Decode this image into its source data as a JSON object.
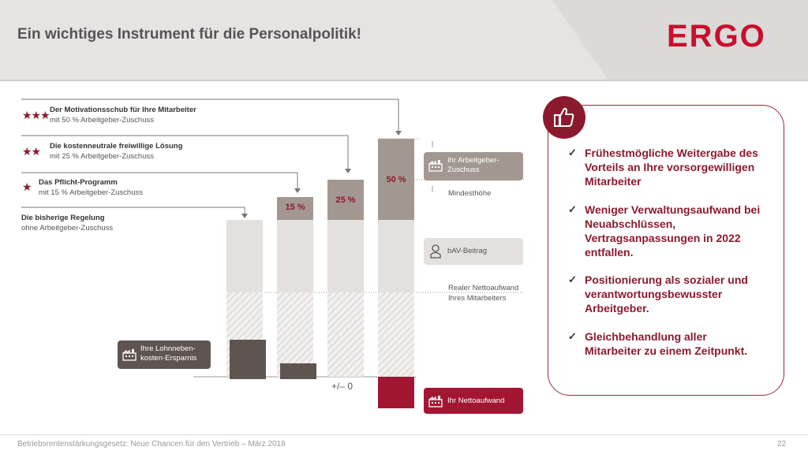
{
  "header": {
    "title": "Ein wichtiges Instrument für die Personalpolitik!",
    "logo": "ERGO"
  },
  "tiers": [
    {
      "stars": "★★★",
      "title": "Der Motivationsschub für Ihre Mitarbeiter",
      "sub": "mit 50 % Arbeitgeber-Zuschuss"
    },
    {
      "stars": "★★",
      "title": "Die kostenneutrale freiwillige Lösung",
      "sub": "mit 25 % Arbeitgeber-Zuschuss"
    },
    {
      "stars": "★",
      "title": "Das Pflicht-Programm",
      "sub": "mit 15 % Arbeitgeber-Zuschuss"
    },
    {
      "stars": "",
      "title": "Die bisherige Regelung",
      "sub": "ohne Arbeitgeber-Zuschuss"
    }
  ],
  "bars": {
    "pct": [
      "15 %",
      "25 %",
      "50 %"
    ]
  },
  "zero_label": "+/– 0",
  "tags": {
    "arbeitgeber": "Ihr Arbeitgeber-Zuschuss",
    "bav": "bAV-Beitrag",
    "lohnneben": "Ihre Lohnneben-kosten-Ersparnis",
    "nettoaufwand": "Ihr Nettoaufwand"
  },
  "side_labels": {
    "mindesthoehe": "Mindesthöhe",
    "real_netto_1": "Realer Nettoaufwand",
    "real_netto_2": "Ihres Mitarbeiters"
  },
  "bullets": [
    "Frühestmögliche Weitergabe des Vorteils an Ihre vorsorgewilligen Mitarbeiter",
    "Weniger Verwaltungsaufwand bei Neuabschlüssen, Vertragsanpassungen in 2022 entfallen.",
    "Positionierung als sozialer und verantwortungsbewusster Arbeitgeber.",
    "Gleichbehandlung aller Mitarbeiter zu einem Zeitpunkt."
  ],
  "footer": {
    "text": "Betriebsrentenstärkungsgesetz: Neue Chancen für den Vertrieb – März 2018",
    "page": "22"
  },
  "colors": {
    "accent": "#8c1a2e",
    "bar_light": "#e3e0de",
    "bar_mid": "#a39891",
    "bar_dark": "#5e5450",
    "netto_red": "#a31632"
  }
}
